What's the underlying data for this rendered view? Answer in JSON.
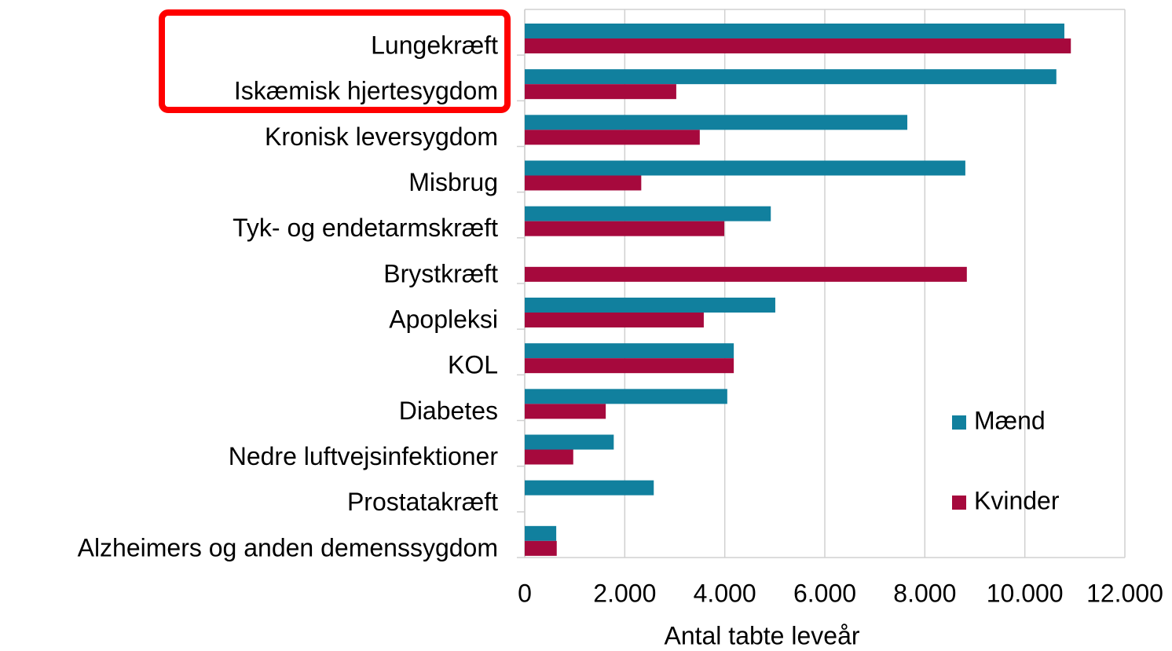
{
  "chart_data": {
    "type": "barh",
    "x_label": "Antal tabte leveår",
    "categories": [
      "Lungekræft",
      "Iskæmisk hjertesygdom",
      "Kronisk leversygdom",
      "Misbrug",
      "Tyk- og endetarmskræft",
      "Brystkræft",
      "Apopleksi",
      "KOL",
      "Diabetes",
      "Nedre luftvejsinfektioner",
      "Prostatakræft",
      "Alzheimers og anden demenssygdom"
    ],
    "series": [
      {
        "name": "Mænd",
        "color": "#11809e",
        "values": [
          10790,
          10630,
          7650,
          8810,
          4920,
          null,
          5010,
          4180,
          4050,
          1780,
          2580,
          630
        ]
      },
      {
        "name": "Kvinder",
        "color": "#a6093d",
        "values": [
          10920,
          3030,
          3500,
          2330,
          3990,
          8840,
          3580,
          4180,
          1620,
          970,
          null,
          640
        ]
      }
    ],
    "xlim": [
      0,
      12000
    ],
    "xticks": [
      0,
      {
        "value": 2000,
        "label": "2.000"
      },
      {
        "value": 4000,
        "label": "4.000"
      },
      {
        "value": 6000,
        "label": "6.000"
      },
      {
        "value": 8000,
        "label": "8.000"
      },
      {
        "value": 10000,
        "label": "10.000"
      },
      {
        "value": 12000,
        "label": "12.000"
      }
    ],
    "grid": true,
    "legend": "right"
  }
}
